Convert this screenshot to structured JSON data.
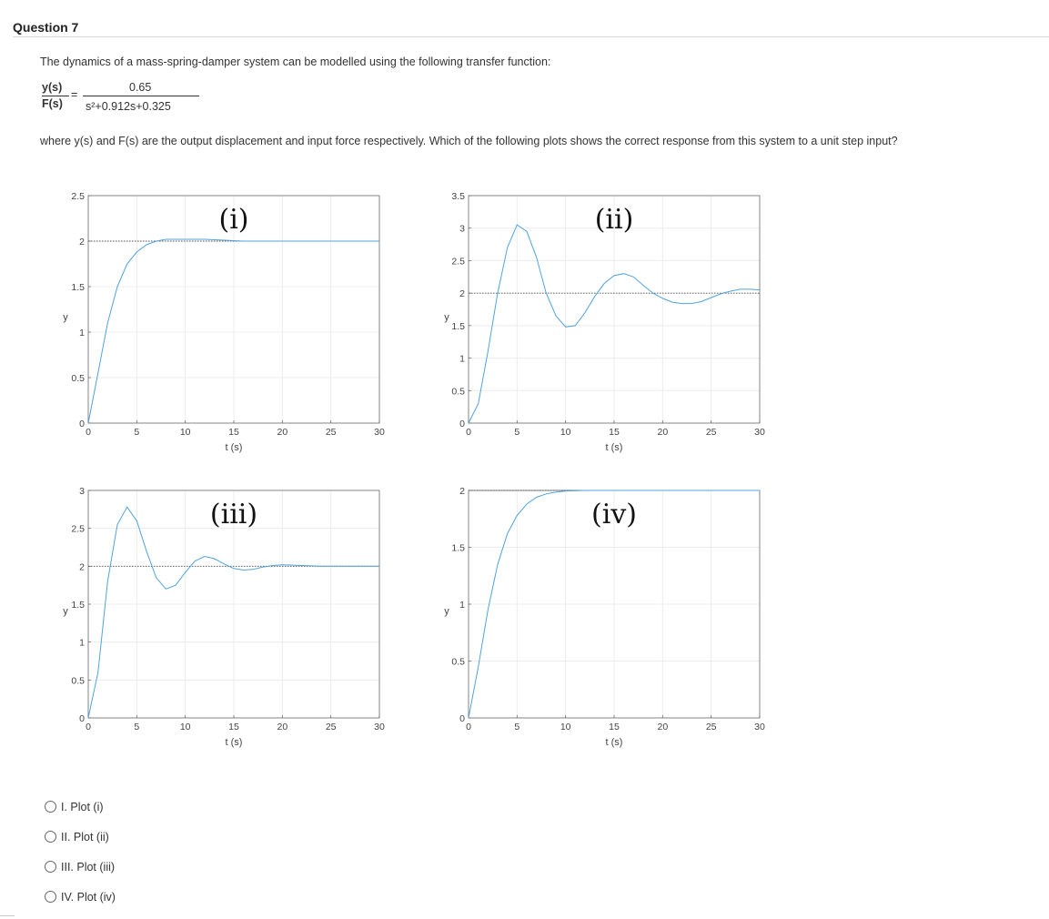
{
  "question": {
    "title": "Question 7",
    "intro": "The dynamics of a mass-spring-damper system can be modelled using the following transfer function:",
    "tf_lhs_num": "y(s)",
    "tf_lhs_den": "F(s)",
    "tf_eq": "=",
    "tf_rhs_num": "0.65",
    "tf_rhs_den": "s²+0.912s+0.325",
    "prompt": "where y(s) and F(s) are the output displacement and input force respectively. Which of the following plots shows the correct response from this system to a unit step input?"
  },
  "options": [
    {
      "label": "I.  Plot (i)"
    },
    {
      "label": "II.  Plot (ii)"
    },
    {
      "label": "III. Plot (iii)"
    },
    {
      "label": "IV. Plot (iv)"
    }
  ],
  "chart_data": [
    {
      "type": "line",
      "title": "(i)",
      "xlabel": "t (s)",
      "ylabel": "y",
      "xlim": [
        0,
        30
      ],
      "ylim": [
        0,
        2.5
      ],
      "xticks": [
        0,
        5,
        10,
        15,
        20,
        25,
        30
      ],
      "yticks": [
        0,
        0.5,
        1,
        1.5,
        2,
        2.5
      ],
      "reference": 2,
      "grid": true,
      "x": [
        0,
        1,
        2,
        3,
        4,
        5,
        6,
        7,
        8,
        9,
        10,
        12,
        14,
        16,
        18,
        20,
        25,
        30
      ],
      "y": [
        0,
        0.55,
        1.1,
        1.5,
        1.75,
        1.88,
        1.96,
        2.0,
        2.02,
        2.02,
        2.02,
        2.02,
        2.01,
        2.0,
        2.0,
        2.0,
        2.0,
        2.0
      ]
    },
    {
      "type": "line",
      "title": "(ii)",
      "xlabel": "t (s)",
      "ylabel": "y",
      "xlim": [
        0,
        30
      ],
      "ylim": [
        0,
        3.5
      ],
      "xticks": [
        0,
        5,
        10,
        15,
        20,
        25,
        30
      ],
      "yticks": [
        0,
        0.5,
        1,
        1.5,
        2,
        2.5,
        3,
        3.5
      ],
      "reference": 2,
      "grid": true,
      "x": [
        0,
        1,
        2,
        3,
        4,
        5,
        6,
        7,
        8,
        9,
        10,
        11,
        12,
        13,
        14,
        15,
        16,
        17,
        18,
        19,
        20,
        21,
        22,
        23,
        24,
        25,
        26,
        27,
        28,
        29,
        30
      ],
      "y": [
        0,
        0.3,
        1.1,
        2.0,
        2.7,
        3.05,
        2.95,
        2.55,
        2.0,
        1.65,
        1.48,
        1.5,
        1.7,
        1.95,
        2.15,
        2.27,
        2.3,
        2.25,
        2.12,
        2.0,
        1.92,
        1.86,
        1.84,
        1.84,
        1.87,
        1.93,
        1.99,
        2.03,
        2.06,
        2.06,
        2.05
      ]
    },
    {
      "type": "line",
      "title": "(iii)",
      "xlabel": "t (s)",
      "ylabel": "y",
      "xlim": [
        0,
        30
      ],
      "ylim": [
        0,
        3
      ],
      "xticks": [
        0,
        5,
        10,
        15,
        20,
        25,
        30
      ],
      "yticks": [
        0,
        0.5,
        1,
        1.5,
        2,
        2.5,
        3
      ],
      "reference": 2,
      "grid": true,
      "x": [
        0,
        1,
        2,
        3,
        4,
        5,
        6,
        7,
        8,
        9,
        10,
        11,
        12,
        13,
        14,
        15,
        16,
        17,
        18,
        19,
        20,
        22,
        24,
        26,
        28,
        30
      ],
      "y": [
        0,
        0.6,
        1.8,
        2.55,
        2.78,
        2.6,
        2.2,
        1.85,
        1.7,
        1.75,
        1.92,
        2.07,
        2.13,
        2.1,
        2.03,
        1.97,
        1.95,
        1.96,
        1.99,
        2.01,
        2.02,
        2.01,
        2.0,
        2.0,
        2.0,
        2.0
      ]
    },
    {
      "type": "line",
      "title": "(iv)",
      "xlabel": "t (s)",
      "ylabel": "y",
      "xlim": [
        0,
        30
      ],
      "ylim": [
        0,
        2
      ],
      "xticks": [
        0,
        5,
        10,
        15,
        20,
        25,
        30
      ],
      "yticks": [
        0,
        0.5,
        1,
        1.5,
        2
      ],
      "reference": 2,
      "grid": true,
      "x": [
        0,
        1,
        2,
        3,
        4,
        5,
        6,
        7,
        8,
        9,
        10,
        12,
        15,
        20,
        25,
        30
      ],
      "y": [
        0,
        0.45,
        0.95,
        1.35,
        1.62,
        1.78,
        1.88,
        1.94,
        1.97,
        1.985,
        1.995,
        2.0,
        2.0,
        2.0,
        2.0,
        2.0
      ]
    }
  ]
}
